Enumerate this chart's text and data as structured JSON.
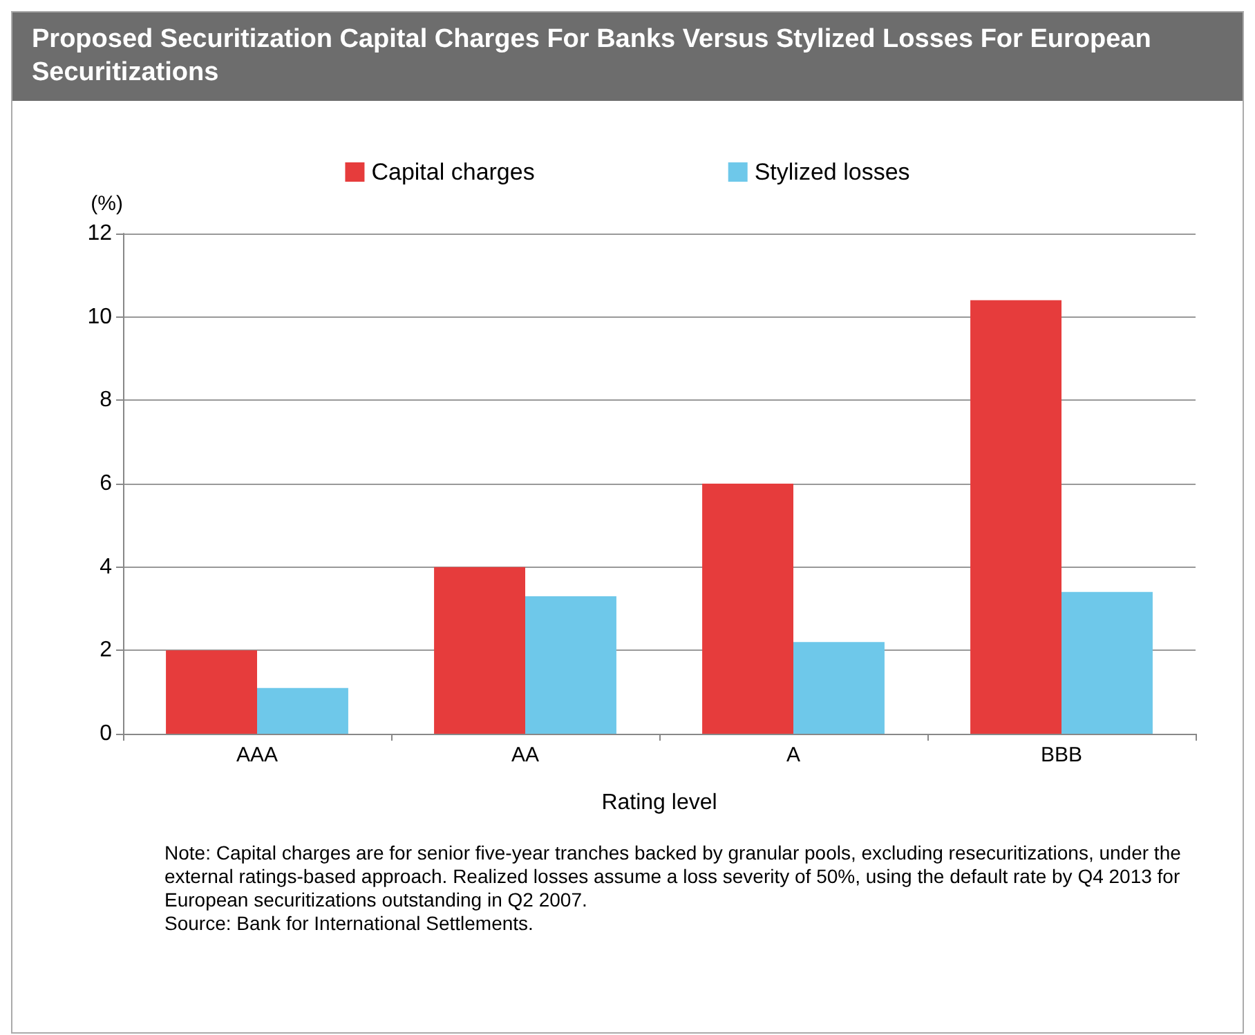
{
  "chart_data": {
    "type": "bar",
    "title": "Proposed Securitization Capital Charges For Banks Versus Stylized Losses For European Securitizations",
    "xlabel": "Rating level",
    "ylabel": "(%)",
    "categories": [
      "AAA",
      "AA",
      "A",
      "BBB"
    ],
    "series": [
      {
        "name": "Capital charges",
        "color": "#e63c3c",
        "values": [
          2,
          4,
          6,
          10.4
        ]
      },
      {
        "name": "Stylized losses",
        "color": "#6ec8ea",
        "values": [
          1.1,
          3.3,
          2.2,
          3.4
        ]
      }
    ],
    "ylim": [
      0,
      12
    ],
    "yticks": [
      0,
      2,
      4,
      6,
      8,
      10,
      12
    ],
    "grid": "y",
    "legend": "top",
    "annotations": [
      "Note: Capital charges are for senior five-year tranches backed by granular pools, excluding resecuritizations, under the external ratings-based approach. Realized losses assume a loss severity of 50%, using the default rate by Q4 2013 for European securitizations outstanding in Q2 2007.",
      "Source: Bank for International Settlements."
    ]
  }
}
